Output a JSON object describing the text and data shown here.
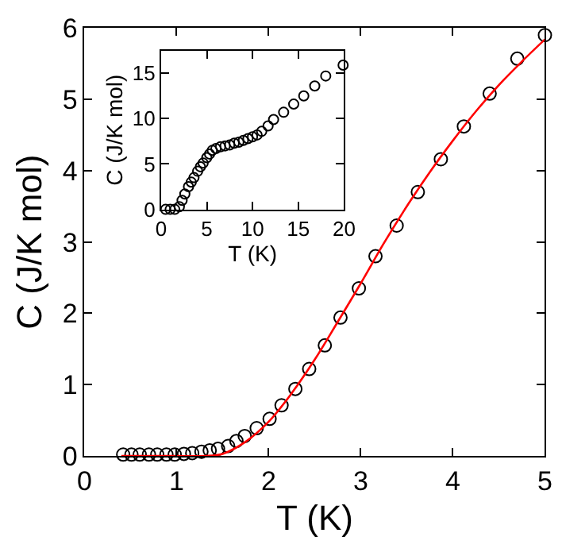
{
  "chart_data": [
    {
      "type": "scatter",
      "xlabel": "T (K)",
      "ylabel": "C (J/K mol)",
      "xlim": [
        0,
        5
      ],
      "ylim": [
        0,
        6
      ],
      "xticks": [
        0,
        1,
        2,
        3,
        4,
        5
      ],
      "yticks": [
        0,
        1,
        2,
        3,
        4,
        5,
        6
      ],
      "marker": "circle",
      "series": [
        {
          "color": "#000000",
          "x": [
            0.42,
            0.51,
            0.6,
            0.7,
            0.79,
            0.89,
            0.98,
            1.08,
            1.17,
            1.27,
            1.36,
            1.45,
            1.56,
            1.65,
            1.74,
            1.87,
            2.01,
            2.14,
            2.29,
            2.44,
            2.61,
            2.78,
            2.98,
            3.16,
            3.39,
            3.62,
            3.87,
            4.12,
            4.4,
            4.7,
            5.0
          ],
          "values": [
            0.02,
            0.02,
            0.02,
            0.02,
            0.02,
            0.02,
            0.02,
            0.03,
            0.04,
            0.06,
            0.08,
            0.1,
            0.14,
            0.21,
            0.28,
            0.39,
            0.52,
            0.71,
            0.94,
            1.22,
            1.55,
            1.94,
            2.35,
            2.8,
            3.23,
            3.7,
            4.16,
            4.62,
            5.08,
            5.57,
            5.9
          ]
        },
        {
          "type": "line",
          "color": "#ff0000",
          "marker": "none",
          "x": [
            0.4,
            1.0,
            1.3,
            1.5,
            1.75,
            2.0,
            2.25,
            2.5,
            2.75,
            3.0,
            3.25,
            3.5,
            3.75,
            4.0,
            4.25,
            4.5,
            4.75,
            5.0
          ],
          "values": [
            0,
            0,
            0,
            0.03,
            0.2,
            0.48,
            0.88,
            1.35,
            1.88,
            2.42,
            2.98,
            3.5,
            3.98,
            4.42,
            4.83,
            5.2,
            5.53,
            5.84
          ]
        }
      ]
    },
    {
      "type": "scatter",
      "xlabel": "T (K)",
      "ylabel": "C (J/K mol)",
      "xlim": [
        0,
        20
      ],
      "ylim": [
        0,
        17.5
      ],
      "xticks": [
        0,
        5,
        10,
        15,
        20
      ],
      "yticks": [
        0,
        5,
        10,
        15
      ],
      "marker": "circle",
      "series": [
        {
          "color": "#000000",
          "x": [
            0.5,
            1.0,
            1.5,
            2.0,
            2.3,
            2.6,
            3.0,
            3.3,
            3.6,
            4.0,
            4.3,
            4.6,
            5.0,
            5.3,
            5.6,
            6.0,
            6.5,
            7.0,
            7.5,
            8.0,
            8.5,
            9.0,
            9.5,
            10.0,
            10.5,
            11.0,
            11.7,
            12.3,
            13.4,
            14.5,
            15.6,
            16.8,
            18.0,
            19.9
          ],
          "values": [
            0,
            0,
            0,
            0.3,
            1.0,
            1.7,
            2.5,
            3.0,
            3.5,
            4.2,
            4.7,
            5.1,
            5.7,
            6.1,
            6.5,
            6.7,
            6.9,
            7.0,
            7.1,
            7.3,
            7.4,
            7.6,
            7.8,
            8.0,
            8.2,
            8.6,
            9.2,
            9.9,
            10.7,
            11.6,
            12.5,
            13.6,
            14.7,
            15.9
          ]
        }
      ]
    }
  ]
}
